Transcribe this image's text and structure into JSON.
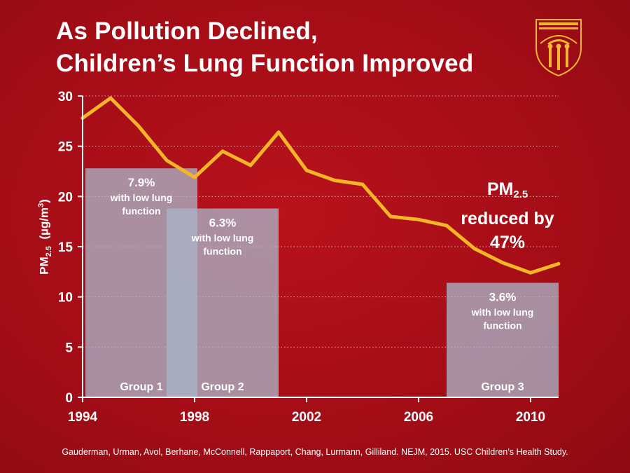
{
  "title": {
    "line1": "As Pollution Declined,",
    "line2": "Children’s Lung Function Improved"
  },
  "citation": "Gauderman, Urman, Avol, Berhane, McConnell, Rappaport, Chang, Lurmann, Gilliland. NEJM, 2015. USC Children’s Health Study.",
  "callout": {
    "pm": "PM",
    "pm_sub": "2.5",
    "line2": "reduced by",
    "line3": "47%"
  },
  "logo": {
    "icon": "usc-seal-icon",
    "color": "#f2b632"
  },
  "chart_data": {
    "type": "line",
    "title": "As Pollution Declined, Children’s Lung Function Improved",
    "ylabel": {
      "main": "PM",
      "sub": "2.5",
      "unit_pre": "(µg/m",
      "unit_sup": "3",
      "unit_post": ")"
    },
    "xlabel": "",
    "xlim": [
      1994,
      2011
    ],
    "ylim": [
      0,
      30
    ],
    "x_ticks": [
      1994,
      1998,
      2002,
      2006,
      2010
    ],
    "y_ticks": [
      0,
      5,
      10,
      15,
      20,
      25,
      30
    ],
    "grid": "horizontal-dotted",
    "series": [
      {
        "color": "#f4b526",
        "x": [
          1994,
          1995,
          1996,
          1997,
          1998,
          1999,
          2000,
          2001,
          2002,
          2003,
          2004,
          2005,
          2006,
          2007,
          2008,
          2009,
          2010,
          2011
        ],
        "values": [
          27.8,
          29.8,
          27.0,
          23.6,
          21.9,
          24.5,
          23.1,
          26.4,
          22.6,
          21.6,
          21.2,
          18.0,
          17.7,
          17.1,
          14.8,
          13.4,
          12.4,
          13.3
        ]
      }
    ],
    "groups": [
      {
        "label": "Group 1",
        "pct": "7.9%",
        "desc1": "with low lung",
        "desc2": "function",
        "x_start": 1994.1,
        "x_end": 1998.1,
        "value": 22.8
      },
      {
        "label": "Group 2",
        "pct": "6.3%",
        "desc1": "with low lung",
        "desc2": "function",
        "x_start": 1997.0,
        "x_end": 2001.0,
        "value": 18.8
      },
      {
        "label": "Group 3",
        "pct": "3.6%",
        "desc1": "with low lung",
        "desc2": "function",
        "x_start": 2007.0,
        "x_end": 2011.0,
        "value": 11.4
      }
    ]
  }
}
